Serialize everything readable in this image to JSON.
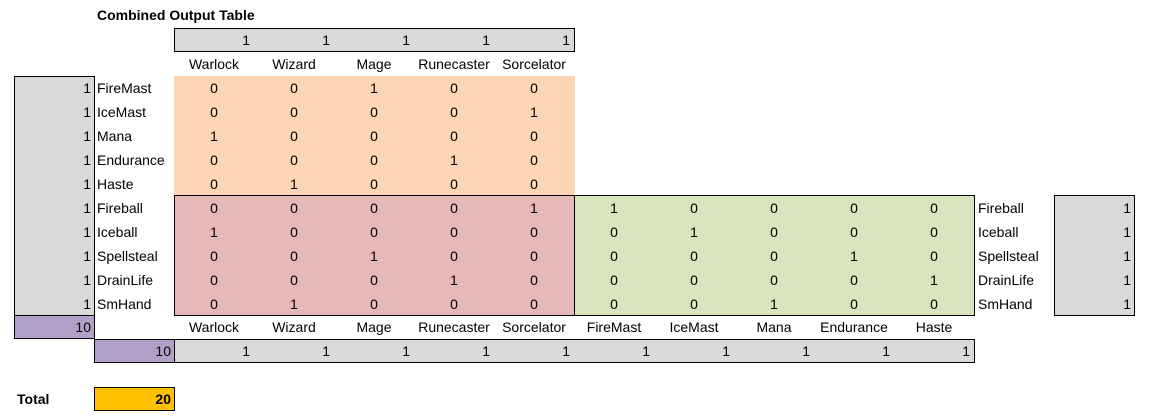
{
  "title": "Combined Output Table",
  "top_weights": [
    "1",
    "1",
    "1",
    "1",
    "1"
  ],
  "top_headers": [
    "Warlock",
    "Wizard",
    "Mage",
    "Runecaster",
    "Sorcelator"
  ],
  "upper_rows": [
    {
      "weight": "1",
      "label": "FireMast",
      "vals": [
        "0",
        "0",
        "1",
        "0",
        "0"
      ]
    },
    {
      "weight": "1",
      "label": "IceMast",
      "vals": [
        "0",
        "0",
        "0",
        "0",
        "1"
      ]
    },
    {
      "weight": "1",
      "label": "Mana",
      "vals": [
        "1",
        "0",
        "0",
        "0",
        "0"
      ]
    },
    {
      "weight": "1",
      "label": "Endurance",
      "vals": [
        "0",
        "0",
        "0",
        "1",
        "0"
      ]
    },
    {
      "weight": "1",
      "label": "Haste",
      "vals": [
        "0",
        "1",
        "0",
        "0",
        "0"
      ]
    }
  ],
  "lower_rows": [
    {
      "weight": "1",
      "label": "Fireball",
      "red": [
        "0",
        "0",
        "0",
        "0",
        "1"
      ],
      "green": [
        "1",
        "0",
        "0",
        "0",
        "0"
      ],
      "right_label": "Fireball",
      "right_weight": "1"
    },
    {
      "weight": "1",
      "label": "Iceball",
      "red": [
        "1",
        "0",
        "0",
        "0",
        "0"
      ],
      "green": [
        "0",
        "1",
        "0",
        "0",
        "0"
      ],
      "right_label": "Iceball",
      "right_weight": "1"
    },
    {
      "weight": "1",
      "label": "Spellsteal",
      "red": [
        "0",
        "0",
        "1",
        "0",
        "0"
      ],
      "green": [
        "0",
        "0",
        "0",
        "1",
        "0"
      ],
      "right_label": "Spellsteal",
      "right_weight": "1"
    },
    {
      "weight": "1",
      "label": "DrainLife",
      "red": [
        "0",
        "0",
        "0",
        "1",
        "0"
      ],
      "green": [
        "0",
        "0",
        "0",
        "0",
        "1"
      ],
      "right_label": "DrainLife",
      "right_weight": "1"
    },
    {
      "weight": "1",
      "label": "SmHand",
      "red": [
        "0",
        "1",
        "0",
        "0",
        "0"
      ],
      "green": [
        "0",
        "0",
        "1",
        "0",
        "0"
      ],
      "right_label": "SmHand",
      "right_weight": "1"
    }
  ],
  "left_total": "10",
  "bottom_headers": [
    "Warlock",
    "Wizard",
    "Mage",
    "Runecaster",
    "Sorcelator",
    "FireMast",
    "IceMast",
    "Mana",
    "Endurance",
    "Haste"
  ],
  "bottom_total": "10",
  "bottom_weights": [
    "1",
    "1",
    "1",
    "1",
    "1",
    "1",
    "1",
    "1",
    "1",
    "1"
  ],
  "total_label": "Total",
  "total_value": "20"
}
